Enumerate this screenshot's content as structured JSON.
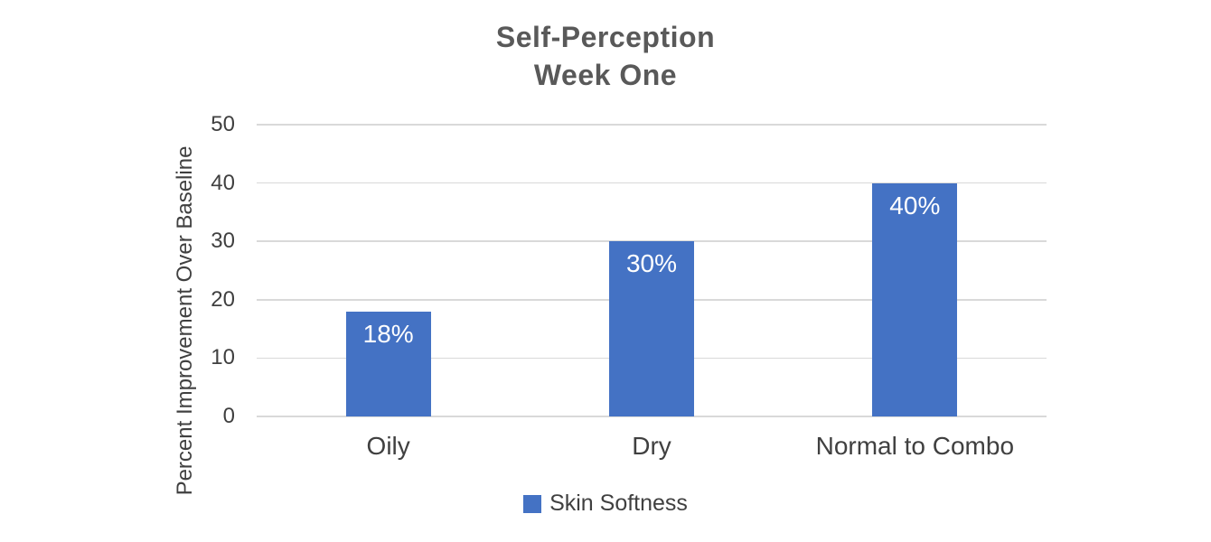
{
  "chart_data": {
    "type": "bar",
    "title": "Self-Perception Week One",
    "title_lines": [
      "Self-Perception",
      "Week One"
    ],
    "ylabel": "Percent Improvement Over Baseline",
    "xlabel": "",
    "categories": [
      "Oily",
      "Dry",
      "Normal to Combo"
    ],
    "series": [
      {
        "name": "Skin Softness",
        "values": [
          18,
          30,
          40
        ]
      }
    ],
    "bar_labels": [
      "18%",
      "30%",
      "40%"
    ],
    "ylim": [
      0,
      50
    ],
    "yticks": [
      0,
      10,
      20,
      30,
      40,
      50
    ],
    "grid": "horizontal",
    "legend_position": "bottom",
    "colors": {
      "bar": "#4472C4",
      "grid": "#D9D9D9",
      "title": "#595959",
      "axis_text": "#404040",
      "bar_label": "#FFFFFF",
      "background": "#FFFFFF"
    }
  }
}
